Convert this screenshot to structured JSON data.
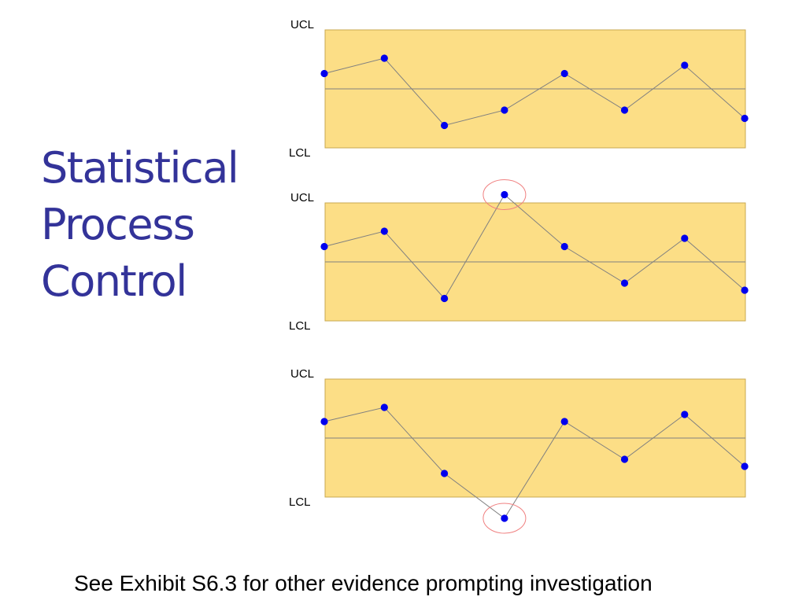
{
  "slide": {
    "title_lines": [
      "Statistical",
      "Process",
      "Control"
    ],
    "caption": "See Exhibit S6.3 for other evidence prompting investigation"
  },
  "colors": {
    "title": "#333399",
    "band_fill": "#FCDE86",
    "band_border": "#C9A850",
    "point": "#0000EE",
    "line": "#808080",
    "highlight": "#F08080"
  },
  "chart_data": [
    {
      "type": "line",
      "upper_label": "UCL",
      "lower_label": "LCL",
      "ylim": [
        0,
        1
      ],
      "center": 0.5,
      "x": [
        1,
        2,
        3,
        4,
        5,
        6,
        7,
        8
      ],
      "values": [
        0.63,
        0.76,
        0.19,
        0.32,
        0.63,
        0.32,
        0.7,
        0.25
      ],
      "highlighted": []
    },
    {
      "type": "line",
      "upper_label": "UCL",
      "lower_label": "LCL",
      "ylim": [
        0,
        1
      ],
      "center": 0.5,
      "x": [
        1,
        2,
        3,
        4,
        5,
        6,
        7,
        8
      ],
      "values": [
        0.63,
        0.76,
        0.19,
        1.07,
        0.63,
        0.32,
        0.7,
        0.26
      ],
      "highlighted": [
        3
      ]
    },
    {
      "type": "line",
      "upper_label": "UCL",
      "lower_label": "LCL",
      "ylim": [
        0,
        1
      ],
      "center": 0.5,
      "x": [
        1,
        2,
        3,
        4,
        5,
        6,
        7,
        8
      ],
      "values": [
        0.64,
        0.76,
        0.2,
        -0.18,
        0.64,
        0.32,
        0.7,
        0.26
      ],
      "highlighted": [
        3
      ]
    }
  ]
}
